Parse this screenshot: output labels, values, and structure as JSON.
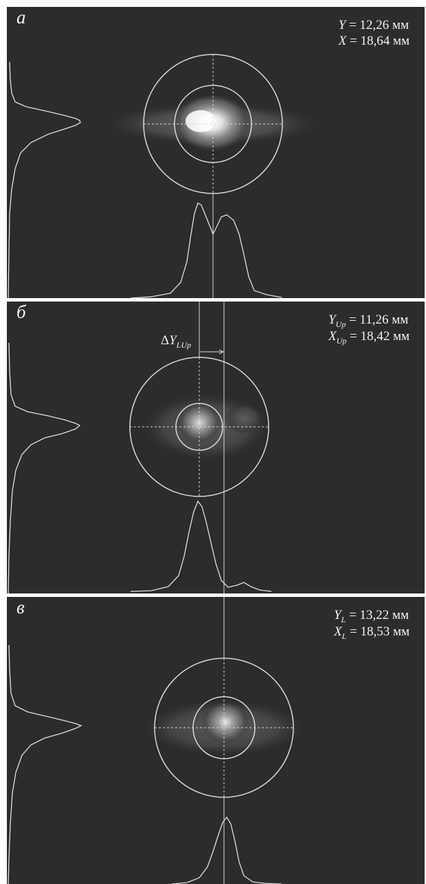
{
  "panels": [
    {
      "letter": "а",
      "line1": {
        "var": "Y",
        "sub": "",
        "value": " = 12,26 мм"
      },
      "line2": {
        "var": "X",
        "sub": "",
        "value": " = 18,64 мм"
      }
    },
    {
      "letter": "б",
      "line1": {
        "var": "Y",
        "sub": "Up",
        "value": " = 11,26 мм"
      },
      "line2": {
        "var": "X",
        "sub": "Up",
        "value": " = 18,42 мм"
      },
      "delta": {
        "prefix": "Δ",
        "var": "Y",
        "sub": "LUp"
      }
    },
    {
      "letter": "в",
      "line1": {
        "var": "Y",
        "sub": "L",
        "value": " = 13,22 мм"
      },
      "line2": {
        "var": "X",
        "sub": "L",
        "value": " = 18,53 мм"
      }
    }
  ],
  "colors": {
    "background": "#2c2c2c",
    "lines": "#d8d8d8",
    "text": "#f2f2f2"
  }
}
